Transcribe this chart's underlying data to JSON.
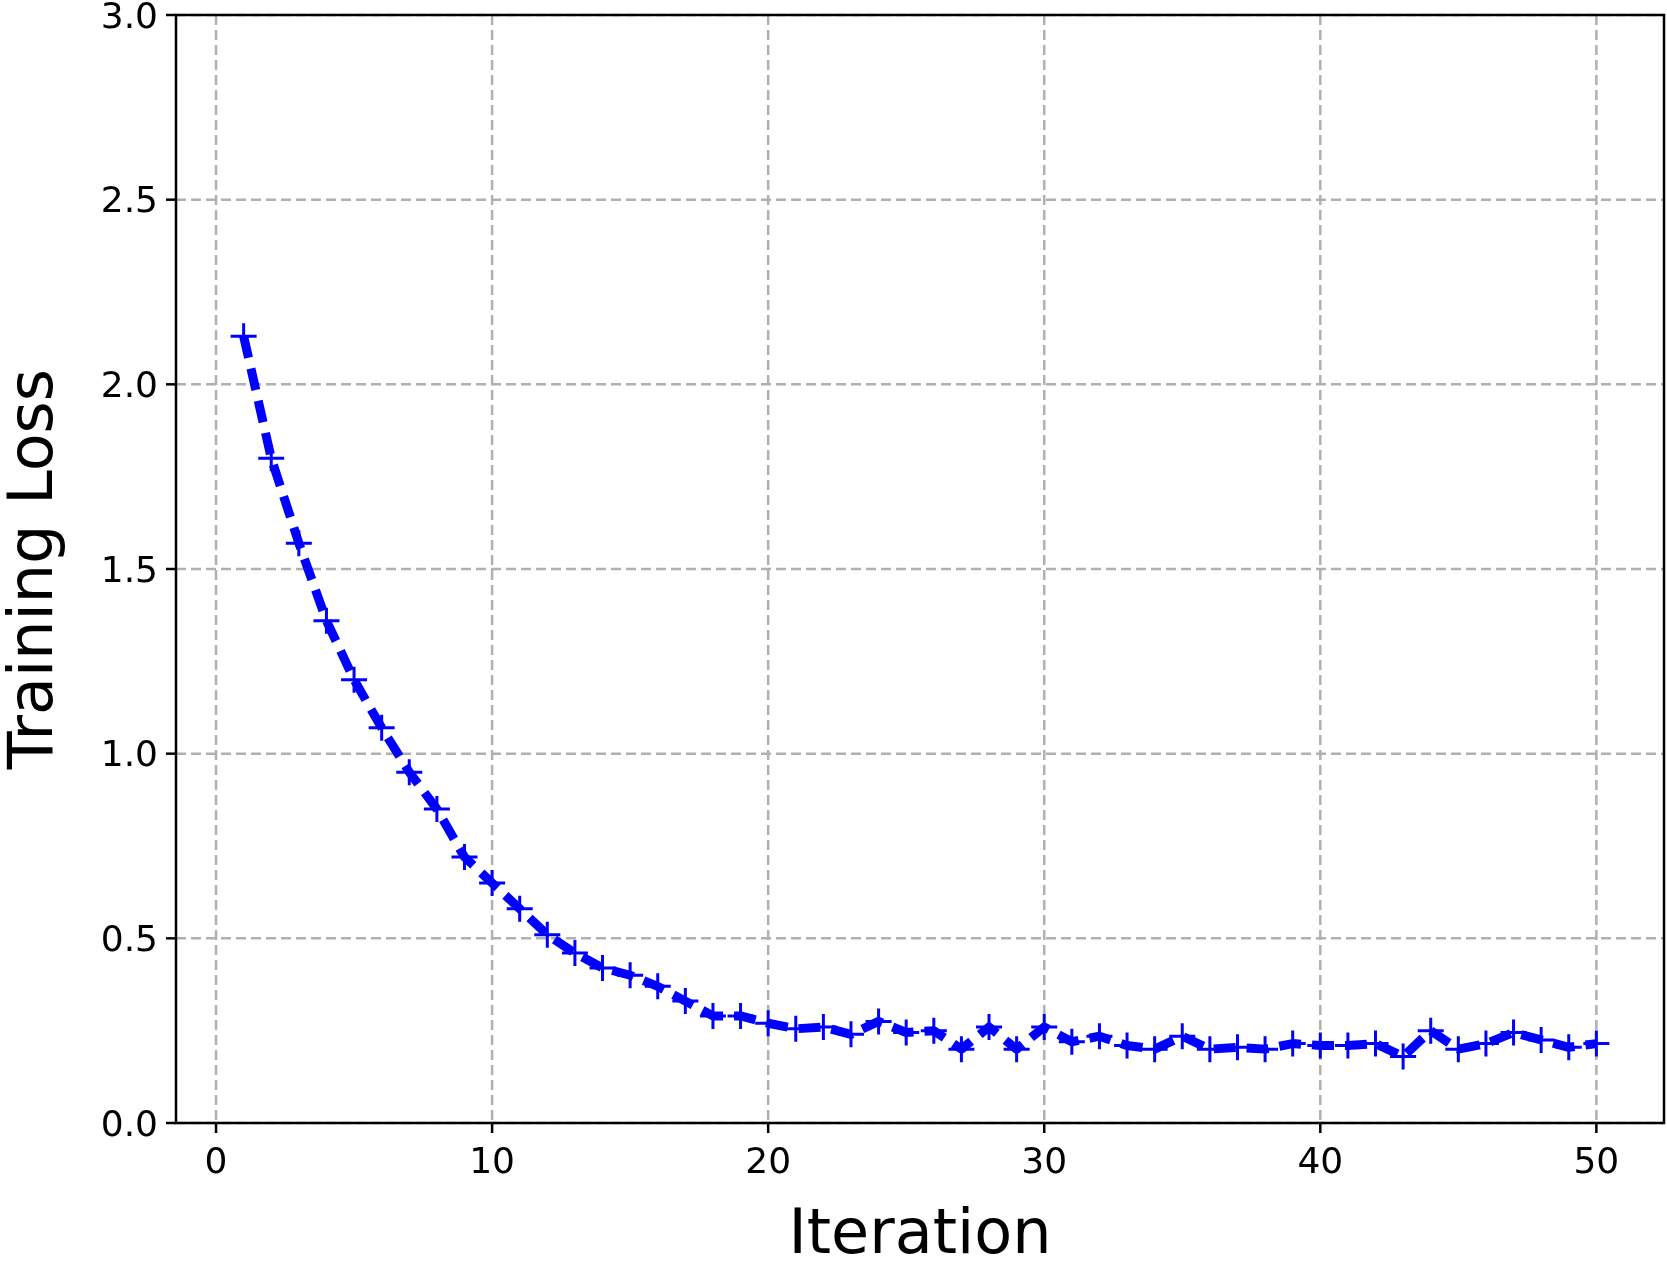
{
  "chart_data": {
    "type": "line",
    "xlabel": "Iteration",
    "ylabel": "Training Loss",
    "x": [
      1,
      2,
      3,
      4,
      5,
      6,
      7,
      8,
      9,
      10,
      11,
      12,
      13,
      14,
      15,
      16,
      17,
      18,
      19,
      20,
      21,
      22,
      23,
      24,
      25,
      26,
      27,
      28,
      29,
      30,
      31,
      32,
      33,
      34,
      35,
      36,
      37,
      38,
      39,
      40,
      41,
      42,
      43,
      44,
      45,
      46,
      47,
      48,
      49,
      50
    ],
    "series": [
      {
        "color": "#0000ff",
        "values": [
          2.13,
          1.8,
          1.57,
          1.36,
          1.2,
          1.07,
          0.95,
          0.85,
          0.72,
          0.65,
          0.58,
          0.51,
          0.46,
          0.42,
          0.4,
          0.37,
          0.33,
          0.29,
          0.29,
          0.27,
          0.255,
          0.26,
          0.24,
          0.275,
          0.245,
          0.25,
          0.2,
          0.26,
          0.2,
          0.26,
          0.22,
          0.235,
          0.21,
          0.2,
          0.235,
          0.2,
          0.205,
          0.2,
          0.215,
          0.21,
          0.21,
          0.215,
          0.18,
          0.25,
          0.2,
          0.215,
          0.245,
          0.225,
          0.205,
          0.215
        ]
      }
    ],
    "xlim": [
      -1.45,
      52.45
    ],
    "xticks": [
      0,
      10,
      20,
      30,
      40,
      50
    ],
    "ylim": [
      0,
      3
    ],
    "yticks": [
      {
        "value": 0,
        "label": "0.0"
      },
      {
        "value": 0.5,
        "label": "0.5"
      },
      {
        "value": 1,
        "label": "1.0"
      },
      {
        "value": 1.5,
        "label": "1.5"
      },
      {
        "value": 2,
        "label": "2.0"
      },
      {
        "value": 2.5,
        "label": "2.5"
      },
      {
        "value": 3,
        "label": "3.0"
      }
    ],
    "grid": true,
    "marker": "cross",
    "line_style": "dashed"
  }
}
